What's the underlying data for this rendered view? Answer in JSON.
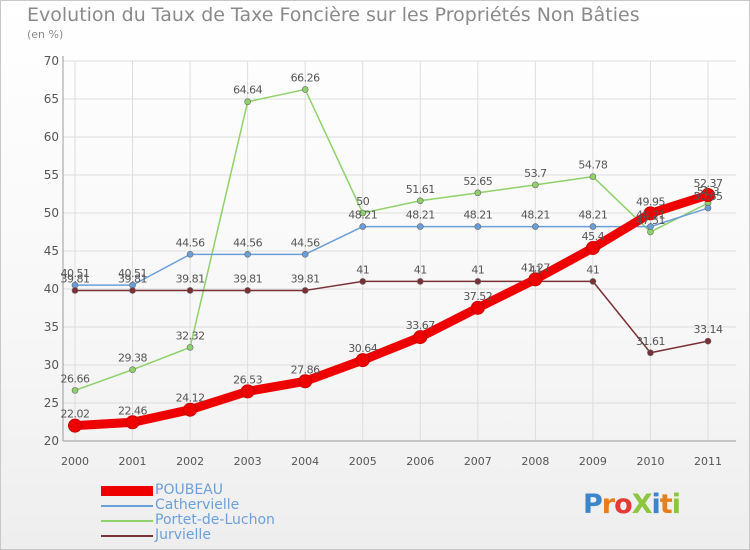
{
  "chart_data": {
    "type": "line",
    "title": "Evolution du Taux de Taxe Foncière sur les Propriétés Non Bâties",
    "subtitle": "(en %)",
    "x": [
      "2000",
      "2001",
      "2002",
      "2003",
      "2004",
      "2005",
      "2006",
      "2007",
      "2008",
      "2009",
      "2010",
      "2011"
    ],
    "ylim": [
      20,
      70
    ],
    "yticks": [
      "20",
      "25",
      "30",
      "35",
      "40",
      "45",
      "50",
      "55",
      "60",
      "65",
      "70"
    ],
    "grid": true,
    "legend_position": "bottom-left",
    "series": [
      {
        "name": "Portet-de-Luchon",
        "color": "#8fd16b",
        "values": [
          26.66,
          29.38,
          32.32,
          64.64,
          66.26,
          50,
          51.61,
          52.65,
          53.7,
          54.78,
          47.51,
          51.3
        ],
        "labels": [
          "26.66",
          "29.38",
          "32.32",
          "64.64",
          "66.26",
          "50",
          "51.61",
          "52.65",
          "53.7",
          "54.78",
          "47.51",
          "51.3"
        ]
      },
      {
        "name": "Cathervielle",
        "color": "#6b9fd8",
        "values": [
          40.51,
          40.51,
          44.56,
          44.56,
          44.56,
          48.21,
          48.21,
          48.21,
          48.21,
          48.21,
          48.21,
          50.65
        ],
        "labels": [
          "40.51",
          "40.51",
          "44.56",
          "44.56",
          "44.56",
          "48.21",
          "48.21",
          "48.21",
          "48.21",
          "48.21",
          "48.21",
          "50.65"
        ]
      },
      {
        "name": "Jurvielle",
        "color": "#7a3035",
        "values": [
          39.81,
          39.81,
          39.81,
          39.81,
          39.81,
          41,
          41,
          41,
          41,
          41,
          31.61,
          33.14
        ],
        "labels": [
          "39.81",
          "39.81",
          "39.81",
          "39.81",
          "39.81",
          "41",
          "41",
          "41",
          "41",
          "41",
          "31.61",
          "33.14"
        ]
      },
      {
        "name": "POUBEAU",
        "color": "#ee0000",
        "values": [
          22.02,
          22.46,
          24.12,
          26.53,
          27.86,
          30.64,
          33.67,
          37.52,
          41.27,
          45.4,
          49.95,
          52.37
        ],
        "labels": [
          "22.02",
          "22.46",
          "24.12",
          "26.53",
          "27.86",
          "30.64",
          "33.67",
          "37.52",
          "41.27",
          "45.4",
          "49.95",
          "52.37"
        ]
      }
    ],
    "legend_order": [
      "POUBEAU",
      "Cathervielle",
      "Portet-de-Luchon",
      "Jurvielle"
    ]
  },
  "logo": {
    "text": "ProXiti"
  }
}
